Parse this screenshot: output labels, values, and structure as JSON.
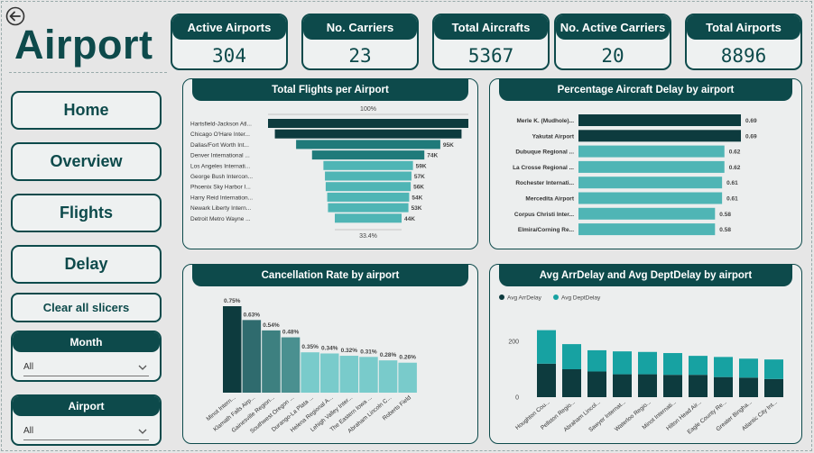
{
  "app": {
    "title": "Airport"
  },
  "kpis": [
    {
      "label": "Active Airports",
      "value": "304"
    },
    {
      "label": "No. Carriers",
      "value": "23"
    },
    {
      "label": "Total Aircrafts",
      "value": "5367"
    },
    {
      "label": "No. Active Carriers",
      "value": "20"
    },
    {
      "label": "Total Airports",
      "value": "8896"
    }
  ],
  "nav": {
    "home": "Home",
    "overview": "Overview",
    "flights": "Flights",
    "delay": "Delay",
    "clear": "Clear all slicers"
  },
  "slicers": {
    "month": {
      "label": "Month",
      "value": "All"
    },
    "airport": {
      "label": "Airport",
      "value": "All"
    }
  },
  "colors": {
    "dark": "#0d3b3e",
    "mid": "#1f7a7a",
    "teal": "#4fb5b5",
    "light": "#79cbcb",
    "accent": "#17a2a2"
  },
  "chart_data": [
    {
      "type": "bar",
      "title": "Total Flights per Airport",
      "orientation": "horizontal-funnel",
      "categories": [
        "Hartsfield-Jackson Atl...",
        "Chicago O'Hare Inter...",
        "Dallas/Fort Worth Int...",
        "Denver International ...",
        "Los Angeles Internati...",
        "George Bush Intercon...",
        "Phoenix Sky Harbor I...",
        "Harry Reid Internation...",
        "Newark Liberty Intern...",
        "Detroit Metro Wayne ..."
      ],
      "values": [
        132,
        123,
        95,
        74,
        59,
        57,
        56,
        54,
        53,
        44
      ],
      "labels": [
        "",
        "",
        "95K",
        "74K",
        "59K",
        "57K",
        "56K",
        "54K",
        "53K",
        "44K"
      ],
      "top_pct": "100%",
      "bottom_pct": "33.4%"
    },
    {
      "type": "bar",
      "title": "Percentage Aircraft Delay by airport",
      "orientation": "horizontal",
      "categories": [
        "Merle K. (Mudhole)...",
        "Yakutat Airport",
        "Dubuque Regional ...",
        "La Crosse Regional ...",
        "Rochester Internati...",
        "Mercedita Airport",
        "Corpus Christi Inter...",
        "Elmira/Corning Re..."
      ],
      "values": [
        0.69,
        0.69,
        0.62,
        0.62,
        0.61,
        0.61,
        0.58,
        0.58
      ],
      "labels": [
        "0.69",
        "0.69",
        "0.62",
        "0.62",
        "0.61",
        "0.61",
        "0.58",
        "0.58"
      ]
    },
    {
      "type": "bar",
      "title": "Cancellation Rate by airport",
      "categories": [
        "Minot Intern...",
        "Klamath Falls Airp...",
        "Gainesville Region...",
        "Southwest Oregon ...",
        "Durango-La Plata ...",
        "Helena Regional A...",
        "Lehigh Valley Inter...",
        "The Eastern Iowa ...",
        "Abraham Lincoln C...",
        "Roberts Field"
      ],
      "values": [
        0.75,
        0.63,
        0.54,
        0.48,
        0.35,
        0.34,
        0.32,
        0.31,
        0.28,
        0.26
      ],
      "labels": [
        "0.75%",
        "0.63%",
        "0.54%",
        "0.48%",
        "0.35%",
        "0.34%",
        "0.32%",
        "0.31%",
        "0.28%",
        "0.26%"
      ]
    },
    {
      "type": "bar",
      "stacked": true,
      "title": "Avg ArrDelay and Avg DeptDelay by airport",
      "categories": [
        "Houghton Cou...",
        "Pellston Regio...",
        "Abraham Lincol...",
        "Sawyer Internat...",
        "Waterloo Regio...",
        "Minot Internati...",
        "Hilton Head Air...",
        "Eagle County Re...",
        "Greater Bingha...",
        "Atlantic City Int..."
      ],
      "series": [
        {
          "name": "Avg ArrDelay",
          "values": [
            120,
            100,
            92,
            82,
            82,
            80,
            80,
            72,
            70,
            65
          ]
        },
        {
          "name": "Avg DeptDelay",
          "values": [
            120,
            90,
            76,
            82,
            80,
            78,
            68,
            72,
            68,
            70
          ]
        }
      ],
      "yticks": [
        "0",
        "200"
      ],
      "ylim": [
        0,
        300
      ],
      "legend": "top-left"
    }
  ]
}
